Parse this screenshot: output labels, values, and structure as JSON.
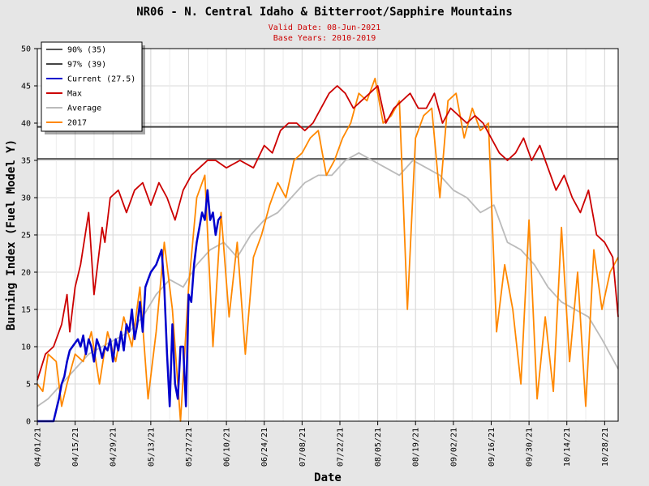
{
  "chart_data": {
    "type": "line",
    "title": "NR06 - N. Central Idaho & Bitterroot/Sapphire Mountains",
    "subtitle_lines": [
      "Valid Date: 08-Jun-2021",
      "Base Years: 2010-2019"
    ],
    "xlabel": "Date",
    "ylabel": "Burning Index (Fuel Model Y)",
    "ylim": [
      0,
      50
    ],
    "y_ticks": [
      0,
      5,
      10,
      15,
      20,
      25,
      30,
      35,
      40,
      45,
      50
    ],
    "x_start": "2021-04-01",
    "x_end": "2021-11-02",
    "x_tick_labels": [
      "04/01/21",
      "04/15/21",
      "04/29/21",
      "05/13/21",
      "05/27/21",
      "06/10/21",
      "06/24/21",
      "07/08/21",
      "07/22/21",
      "08/05/21",
      "08/19/21",
      "09/02/21",
      "09/16/21",
      "09/30/21",
      "10/14/21",
      "10/28/21"
    ],
    "grid": true,
    "legend_position": "top-left",
    "thresholds": [
      {
        "name": "90% (35)",
        "value": 35.2,
        "color": "#555555"
      },
      {
        "name": "97% (39)",
        "value": 39.5,
        "color": "#444444"
      }
    ],
    "series": [
      {
        "name": "Current (27.5)",
        "color": "#0000cc",
        "x": [
          "2021-04-01",
          "2021-04-02",
          "2021-04-03",
          "2021-04-04",
          "2021-04-05",
          "2021-04-06",
          "2021-04-07",
          "2021-04-08",
          "2021-04-09",
          "2021-04-10",
          "2021-04-11",
          "2021-04-12",
          "2021-04-13",
          "2021-04-14",
          "2021-04-15",
          "2021-04-16",
          "2021-04-17",
          "2021-04-18",
          "2021-04-19",
          "2021-04-20",
          "2021-04-21",
          "2021-04-22",
          "2021-04-23",
          "2021-04-24",
          "2021-04-25",
          "2021-04-26",
          "2021-04-27",
          "2021-04-28",
          "2021-04-29",
          "2021-04-30",
          "2021-05-01",
          "2021-05-02",
          "2021-05-03",
          "2021-05-04",
          "2021-05-05",
          "2021-05-06",
          "2021-05-07",
          "2021-05-08",
          "2021-05-09",
          "2021-05-10",
          "2021-05-11",
          "2021-05-12",
          "2021-05-13",
          "2021-05-14",
          "2021-05-15",
          "2021-05-16",
          "2021-05-17",
          "2021-05-18",
          "2021-05-19",
          "2021-05-20",
          "2021-05-21",
          "2021-05-22",
          "2021-05-23",
          "2021-05-24",
          "2021-05-25",
          "2021-05-26",
          "2021-05-27",
          "2021-05-28",
          "2021-05-29",
          "2021-05-30",
          "2021-05-31",
          "2021-06-01",
          "2021-06-02",
          "2021-06-03",
          "2021-06-04",
          "2021-06-05",
          "2021-06-06",
          "2021-06-07",
          "2021-06-08"
        ],
        "values": [
          0,
          0,
          0,
          0,
          0,
          0,
          0,
          1.5,
          3,
          5,
          6,
          8,
          9.5,
          10,
          10.5,
          11,
          10,
          11.5,
          9,
          11,
          10,
          8,
          11,
          10,
          8.5,
          10,
          9.5,
          11,
          8,
          11,
          9.5,
          12,
          9.5,
          13,
          12,
          15,
          11,
          13,
          16,
          12,
          18,
          19,
          20,
          20.5,
          21,
          22,
          23,
          18,
          9,
          2,
          13,
          5,
          3,
          10,
          10,
          2,
          17,
          16,
          21,
          24,
          26,
          28,
          27,
          31,
          27,
          28,
          25,
          27,
          27.5
        ]
      },
      {
        "name": "Max",
        "color": "#cc0000",
        "x": [
          "2021-04-01",
          "2021-04-04",
          "2021-04-07",
          "2021-04-10",
          "2021-04-12",
          "2021-04-13",
          "2021-04-15",
          "2021-04-17",
          "2021-04-20",
          "2021-04-22",
          "2021-04-25",
          "2021-04-26",
          "2021-04-28",
          "2021-05-01",
          "2021-05-04",
          "2021-05-07",
          "2021-05-10",
          "2021-05-13",
          "2021-05-16",
          "2021-05-19",
          "2021-05-22",
          "2021-05-25",
          "2021-05-28",
          "2021-05-31",
          "2021-06-03",
          "2021-06-06",
          "2021-06-10",
          "2021-06-15",
          "2021-06-20",
          "2021-06-24",
          "2021-06-27",
          "2021-06-30",
          "2021-07-03",
          "2021-07-06",
          "2021-07-09",
          "2021-07-12",
          "2021-07-15",
          "2021-07-18",
          "2021-07-21",
          "2021-07-24",
          "2021-07-27",
          "2021-07-30",
          "2021-08-02",
          "2021-08-05",
          "2021-08-08",
          "2021-08-11",
          "2021-08-14",
          "2021-08-17",
          "2021-08-20",
          "2021-08-23",
          "2021-08-26",
          "2021-08-29",
          "2021-09-01",
          "2021-09-04",
          "2021-09-07",
          "2021-09-10",
          "2021-09-13",
          "2021-09-16",
          "2021-09-19",
          "2021-09-22",
          "2021-09-25",
          "2021-09-28",
          "2021-10-01",
          "2021-10-04",
          "2021-10-07",
          "2021-10-10",
          "2021-10-13",
          "2021-10-16",
          "2021-10-19",
          "2021-10-22",
          "2021-10-25",
          "2021-10-28",
          "2021-10-31",
          "2021-11-02"
        ],
        "values": [
          5.5,
          9,
          10,
          13,
          17,
          12,
          18,
          21,
          28,
          17,
          26,
          24,
          30,
          31,
          28,
          31,
          32,
          29,
          32,
          30,
          27,
          31,
          33,
          34,
          35,
          35,
          34,
          35,
          34,
          37,
          36,
          39,
          40,
          40,
          39,
          40,
          42,
          44,
          45,
          44,
          42,
          43,
          44,
          45,
          40,
          42,
          43,
          44,
          42,
          42,
          44,
          40,
          42,
          41,
          40,
          41,
          40,
          38,
          36,
          35,
          36,
          38,
          35,
          37,
          34,
          31,
          33,
          30,
          28,
          31,
          25,
          24,
          22,
          14
        ]
      },
      {
        "name": "Average",
        "color": "#bbbbbb",
        "x": [
          "2021-04-01",
          "2021-04-05",
          "2021-04-10",
          "2021-04-15",
          "2021-04-20",
          "2021-04-25",
          "2021-04-30",
          "2021-05-05",
          "2021-05-10",
          "2021-05-15",
          "2021-05-20",
          "2021-05-25",
          "2021-05-30",
          "2021-06-04",
          "2021-06-09",
          "2021-06-14",
          "2021-06-19",
          "2021-06-24",
          "2021-06-29",
          "2021-07-04",
          "2021-07-09",
          "2021-07-14",
          "2021-07-19",
          "2021-07-24",
          "2021-07-29",
          "2021-08-03",
          "2021-08-08",
          "2021-08-13",
          "2021-08-18",
          "2021-08-23",
          "2021-08-28",
          "2021-09-02",
          "2021-09-07",
          "2021-09-12",
          "2021-09-17",
          "2021-09-22",
          "2021-09-27",
          "2021-10-02",
          "2021-10-07",
          "2021-10-12",
          "2021-10-17",
          "2021-10-22",
          "2021-10-27",
          "2021-11-02"
        ],
        "values": [
          2,
          3,
          5,
          7,
          9,
          10,
          11,
          12,
          14,
          17,
          19,
          18,
          21,
          23,
          24,
          22,
          25,
          27,
          28,
          30,
          32,
          33,
          33,
          35,
          36,
          35,
          34,
          33,
          35,
          34,
          33,
          31,
          30,
          28,
          29,
          24,
          23,
          21,
          18,
          16,
          15,
          14,
          11,
          7
        ]
      },
      {
        "name": "2017",
        "color": "#ff8800",
        "x": [
          "2021-04-01",
          "2021-04-03",
          "2021-04-05",
          "2021-04-08",
          "2021-04-10",
          "2021-04-12",
          "2021-04-15",
          "2021-04-18",
          "2021-04-21",
          "2021-04-24",
          "2021-04-27",
          "2021-04-30",
          "2021-05-03",
          "2021-05-06",
          "2021-05-09",
          "2021-05-12",
          "2021-05-15",
          "2021-05-18",
          "2021-05-21",
          "2021-05-24",
          "2021-05-27",
          "2021-05-30",
          "2021-06-02",
          "2021-06-05",
          "2021-06-08",
          "2021-06-11",
          "2021-06-14",
          "2021-06-17",
          "2021-06-20",
          "2021-06-23",
          "2021-06-26",
          "2021-06-29",
          "2021-07-02",
          "2021-07-05",
          "2021-07-08",
          "2021-07-11",
          "2021-07-14",
          "2021-07-17",
          "2021-07-20",
          "2021-07-23",
          "2021-07-26",
          "2021-07-29",
          "2021-08-01",
          "2021-08-04",
          "2021-08-07",
          "2021-08-10",
          "2021-08-13",
          "2021-08-16",
          "2021-08-19",
          "2021-08-22",
          "2021-08-25",
          "2021-08-28",
          "2021-08-31",
          "2021-09-03",
          "2021-09-06",
          "2021-09-09",
          "2021-09-12",
          "2021-09-15",
          "2021-09-18",
          "2021-09-21",
          "2021-09-24",
          "2021-09-27",
          "2021-09-30",
          "2021-10-03",
          "2021-10-06",
          "2021-10-09",
          "2021-10-12",
          "2021-10-15",
          "2021-10-18",
          "2021-10-21",
          "2021-10-24",
          "2021-10-27",
          "2021-10-30",
          "2021-11-02"
        ],
        "values": [
          5,
          4,
          9,
          8,
          2,
          5,
          9,
          8,
          12,
          5,
          12,
          8,
          14,
          10,
          18,
          3,
          12,
          24,
          15,
          0,
          18,
          30,
          33,
          10,
          28,
          14,
          24,
          9,
          22,
          25,
          29,
          32,
          30,
          35,
          36,
          38,
          39,
          33,
          35,
          38,
          40,
          44,
          43,
          46,
          40,
          41,
          43,
          15,
          38,
          41,
          42,
          30,
          43,
          44,
          38,
          42,
          39,
          40,
          12,
          21,
          15,
          5,
          27,
          3,
          14,
          4,
          26,
          8,
          20,
          2,
          23,
          15,
          20,
          22
        ]
      }
    ]
  }
}
